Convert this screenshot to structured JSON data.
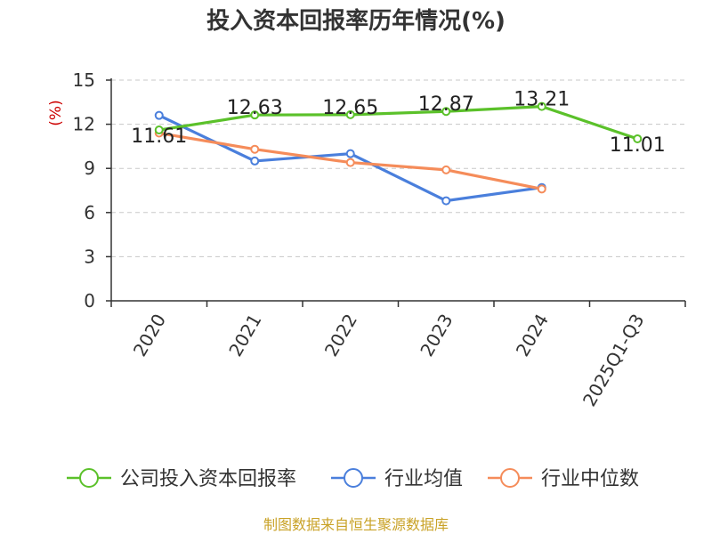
{
  "chart_data": {
    "type": "line",
    "title": "投入资本回报率历年情况(%)",
    "ylabel": "(%)",
    "xlabel": "",
    "ylim": [
      0,
      15
    ],
    "yticks": [
      0,
      3,
      6,
      9,
      12,
      15
    ],
    "categories": [
      "2020",
      "2021",
      "2022",
      "2023",
      "2024",
      "2025Q1-Q3"
    ],
    "grid": true,
    "legend_position": "bottom",
    "series": [
      {
        "name": "公司投入资本回报率",
        "color": "#5bc12a",
        "values": [
          11.61,
          12.63,
          12.65,
          12.87,
          13.21,
          11.01
        ],
        "labels": [
          "11.61",
          "12.63",
          "12.65",
          "12.87",
          "13.21",
          "11.01"
        ],
        "show_labels": true
      },
      {
        "name": "行业均值",
        "color": "#4a7fdc",
        "values": [
          12.6,
          9.5,
          10.0,
          6.8,
          7.7,
          null
        ],
        "show_labels": false
      },
      {
        "name": "行业中位数",
        "color": "#f58c5a",
        "values": [
          11.4,
          10.3,
          9.4,
          8.9,
          7.6,
          null
        ],
        "show_labels": false
      }
    ],
    "source": "制图数据来自恒生聚源数据库"
  }
}
